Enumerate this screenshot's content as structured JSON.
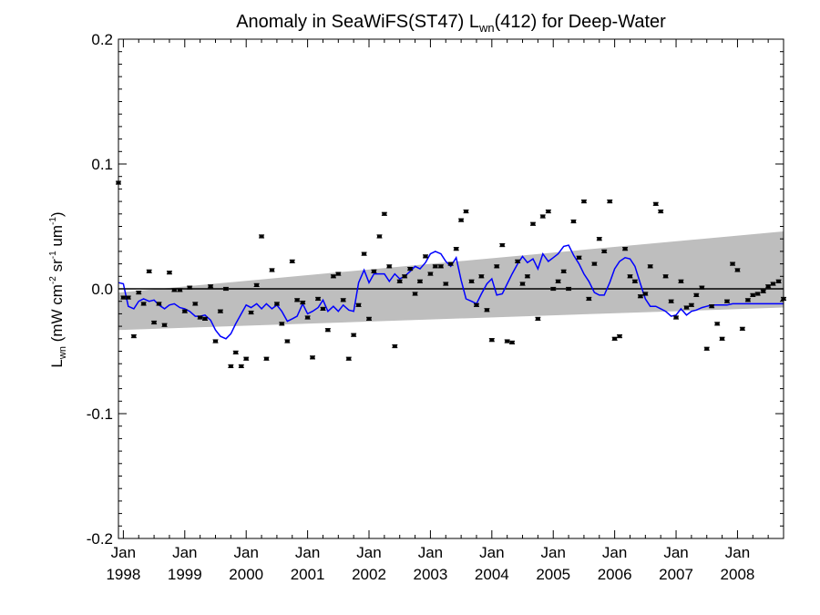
{
  "chart_data": {
    "type": "scatter",
    "title": {
      "prefix": "Anomaly in SeaWiFS(ST47) L",
      "sub": "wn",
      "suffix": "(412) for Deep-Water"
    },
    "ylabel": {
      "main": "L",
      "main_sub": "wn",
      "open": " (mW cm",
      "sup1": "-2",
      "mid1": " sr",
      "sup2": "-1",
      "mid2": " um",
      "sup3": "-1",
      "close": ")"
    },
    "xlabel": "",
    "x_axis": {
      "range": [
        1997.92,
        2008.75
      ],
      "ticks": [
        {
          "x": 1998,
          "month": "Jan",
          "year": "1998"
        },
        {
          "x": 1999,
          "month": "Jan",
          "year": "1999"
        },
        {
          "x": 2000,
          "month": "Jan",
          "year": "2000"
        },
        {
          "x": 2001,
          "month": "Jan",
          "year": "2001"
        },
        {
          "x": 2002,
          "month": "Jan",
          "year": "2002"
        },
        {
          "x": 2003,
          "month": "Jan",
          "year": "2003"
        },
        {
          "x": 2004,
          "month": "Jan",
          "year": "2004"
        },
        {
          "x": 2005,
          "month": "Jan",
          "year": "2005"
        },
        {
          "x": 2006,
          "month": "Jan",
          "year": "2006"
        },
        {
          "x": 2007,
          "month": "Jan",
          "year": "2007"
        },
        {
          "x": 2008,
          "month": "Jan",
          "year": "2008"
        }
      ]
    },
    "y_axis": {
      "range": [
        -0.2,
        0.2
      ],
      "ticks": [
        {
          "value": 0.2,
          "label": "0.2"
        },
        {
          "value": 0.1,
          "label": "0.1"
        },
        {
          "value": 0.0,
          "label": "0.0"
        },
        {
          "value": -0.1,
          "label": "-0.1"
        },
        {
          "value": -0.2,
          "label": "-0.2"
        }
      ]
    },
    "zero_line": 0.0,
    "confidence_band": {
      "x": [
        1997.92,
        2008.75
      ],
      "upper": [
        -0.003,
        0.046
      ],
      "lower": [
        -0.033,
        -0.015
      ],
      "color": "#bebebe"
    },
    "monthly_points": {
      "color": "#000000",
      "x": [
        1997.92,
        1998.0,
        1998.08,
        1998.17,
        1998.25,
        1998.33,
        1998.42,
        1998.5,
        1998.58,
        1998.67,
        1998.75,
        1998.83,
        1998.92,
        1999.0,
        1999.08,
        1999.17,
        1999.25,
        1999.33,
        1999.42,
        1999.5,
        1999.58,
        1999.67,
        1999.75,
        1999.83,
        1999.92,
        2000.0,
        2000.08,
        2000.17,
        2000.25,
        2000.33,
        2000.42,
        2000.5,
        2000.58,
        2000.67,
        2000.75,
        2000.83,
        2000.92,
        2001.0,
        2001.08,
        2001.17,
        2001.25,
        2001.33,
        2001.42,
        2001.5,
        2001.58,
        2001.67,
        2001.75,
        2001.83,
        2001.92,
        2002.0,
        2002.08,
        2002.17,
        2002.25,
        2002.33,
        2002.42,
        2002.5,
        2002.58,
        2002.67,
        2002.75,
        2002.83,
        2002.92,
        2003.0,
        2003.08,
        2003.17,
        2003.25,
        2003.33,
        2003.42,
        2003.5,
        2003.58,
        2003.67,
        2003.75,
        2003.83,
        2003.92,
        2004.0,
        2004.08,
        2004.17,
        2004.25,
        2004.33,
        2004.42,
        2004.5,
        2004.58,
        2004.67,
        2004.75,
        2004.83,
        2004.92,
        2005.0,
        2005.08,
        2005.17,
        2005.25,
        2005.33,
        2005.42,
        2005.5,
        2005.58,
        2005.67,
        2005.75,
        2005.83,
        2005.92,
        2006.0,
        2006.08,
        2006.17,
        2006.25,
        2006.33,
        2006.42,
        2006.5,
        2006.58,
        2006.67,
        2006.75,
        2006.83,
        2006.92,
        2007.0,
        2007.08,
        2007.17,
        2007.25,
        2007.33,
        2007.42,
        2007.5,
        2007.58,
        2007.67,
        2007.75,
        2007.83,
        2007.92,
        2008.0,
        2008.08,
        2008.17,
        2008.25,
        2008.33,
        2008.42,
        2008.5,
        2008.58,
        2008.67,
        2008.75
      ],
      "y": [
        0.085,
        -0.007,
        -0.007,
        -0.038,
        -0.003,
        -0.012,
        0.014,
        -0.027,
        -0.012,
        -0.029,
        0.013,
        -0.001,
        -0.001,
        -0.018,
        0.001,
        -0.012,
        -0.023,
        -0.024,
        0.002,
        -0.042,
        -0.018,
        0.0,
        -0.062,
        -0.051,
        -0.062,
        -0.056,
        -0.019,
        0.003,
        0.042,
        -0.056,
        0.015,
        -0.012,
        -0.028,
        -0.042,
        0.022,
        -0.009,
        -0.011,
        -0.023,
        -0.055,
        -0.008,
        -0.016,
        -0.033,
        0.01,
        0.012,
        -0.009,
        -0.056,
        -0.037,
        -0.013,
        0.028,
        -0.024,
        0.014,
        0.042,
        0.06,
        0.018,
        -0.046,
        0.006,
        0.01,
        0.016,
        -0.004,
        0.006,
        0.026,
        0.012,
        0.018,
        0.018,
        0.004,
        0.02,
        0.032,
        0.055,
        0.062,
        0.006,
        -0.013,
        0.01,
        -0.017,
        -0.041,
        0.018,
        0.035,
        -0.042,
        -0.043,
        0.022,
        0.004,
        0.01,
        0.052,
        -0.024,
        0.058,
        0.062,
        0.0,
        0.006,
        0.014,
        0.0,
        0.054,
        0.025,
        0.07,
        -0.008,
        0.02,
        0.04,
        0.03,
        0.07,
        -0.04,
        -0.038,
        0.032,
        0.01,
        0.006,
        -0.006,
        -0.004,
        0.018,
        0.068,
        0.062,
        0.01,
        -0.01,
        -0.023,
        0.006,
        -0.015,
        -0.013,
        -0.005,
        0.001,
        -0.048,
        -0.014,
        -0.028,
        -0.04,
        -0.01,
        0.02,
        0.015,
        -0.032,
        -0.009,
        -0.005,
        -0.004,
        -0.002,
        0.002,
        0.004,
        0.006,
        -0.008
      ]
    },
    "running_mean": {
      "color": "#0000ff",
      "x": [
        1997.92,
        1998.0,
        1998.08,
        1998.17,
        1998.25,
        1998.33,
        1998.42,
        1998.5,
        1998.58,
        1998.67,
        1998.75,
        1998.83,
        1998.92,
        1999.0,
        1999.08,
        1999.17,
        1999.25,
        1999.33,
        1999.42,
        1999.5,
        1999.58,
        1999.67,
        1999.75,
        1999.83,
        1999.92,
        2000.0,
        2000.08,
        2000.17,
        2000.25,
        2000.33,
        2000.42,
        2000.5,
        2000.58,
        2000.67,
        2000.75,
        2000.83,
        2000.92,
        2001.0,
        2001.08,
        2001.17,
        2001.25,
        2001.33,
        2001.42,
        2001.5,
        2001.58,
        2001.67,
        2001.75,
        2001.83,
        2001.92,
        2002.0,
        2002.08,
        2002.17,
        2002.25,
        2002.33,
        2002.42,
        2002.5,
        2002.58,
        2002.67,
        2002.75,
        2002.83,
        2002.92,
        2003.0,
        2003.08,
        2003.17,
        2003.25,
        2003.33,
        2003.42,
        2003.5,
        2003.58,
        2003.67,
        2003.75,
        2003.83,
        2003.92,
        2004.0,
        2004.08,
        2004.17,
        2004.25,
        2004.33,
        2004.42,
        2004.5,
        2004.58,
        2004.67,
        2004.75,
        2004.83,
        2004.92,
        2005.0,
        2005.08,
        2005.17,
        2005.25,
        2005.33,
        2005.42,
        2005.5,
        2005.58,
        2005.67,
        2005.75,
        2005.83,
        2005.92,
        2006.0,
        2006.08,
        2006.17,
        2006.25,
        2006.33,
        2006.42,
        2006.5,
        2006.58,
        2006.67,
        2006.75,
        2006.83,
        2006.92,
        2007.0,
        2007.08,
        2007.17,
        2007.25,
        2007.33,
        2007.42,
        2007.5,
        2007.58,
        2007.67,
        2007.75,
        2007.83,
        2007.92,
        2008.75
      ],
      "y": [
        0.005,
        0.004,
        -0.014,
        -0.016,
        -0.01,
        -0.008,
        -0.01,
        -0.009,
        -0.013,
        -0.016,
        -0.013,
        -0.012,
        -0.015,
        -0.016,
        -0.018,
        -0.022,
        -0.022,
        -0.021,
        -0.025,
        -0.033,
        -0.038,
        -0.04,
        -0.036,
        -0.028,
        -0.02,
        -0.013,
        -0.015,
        -0.012,
        -0.016,
        -0.012,
        -0.016,
        -0.013,
        -0.018,
        -0.026,
        -0.024,
        -0.022,
        -0.012,
        -0.02,
        -0.018,
        -0.015,
        -0.009,
        -0.018,
        -0.014,
        -0.018,
        -0.013,
        -0.017,
        -0.018,
        0.005,
        0.015,
        0.005,
        0.012,
        0.012,
        0.012,
        0.006,
        0.012,
        0.008,
        0.01,
        0.014,
        0.018,
        0.016,
        0.021,
        0.028,
        0.03,
        0.028,
        0.022,
        0.018,
        0.025,
        0.007,
        -0.008,
        -0.01,
        -0.012,
        -0.004,
        0.004,
        0.008,
        -0.005,
        -0.004,
        0.004,
        0.012,
        0.02,
        0.026,
        0.021,
        0.024,
        0.016,
        0.028,
        0.022,
        0.025,
        0.028,
        0.034,
        0.035,
        0.027,
        0.02,
        0.012,
        0.006,
        -0.003,
        -0.005,
        -0.005,
        0.005,
        0.016,
        0.022,
        0.025,
        0.024,
        0.018,
        0.004,
        -0.008,
        -0.014,
        -0.014,
        -0.016,
        -0.018,
        -0.022,
        -0.021,
        -0.016,
        -0.021,
        -0.018,
        -0.017,
        -0.015,
        -0.014,
        -0.013,
        -0.013,
        -0.013,
        -0.013,
        -0.012,
        -0.012
      ]
    }
  }
}
